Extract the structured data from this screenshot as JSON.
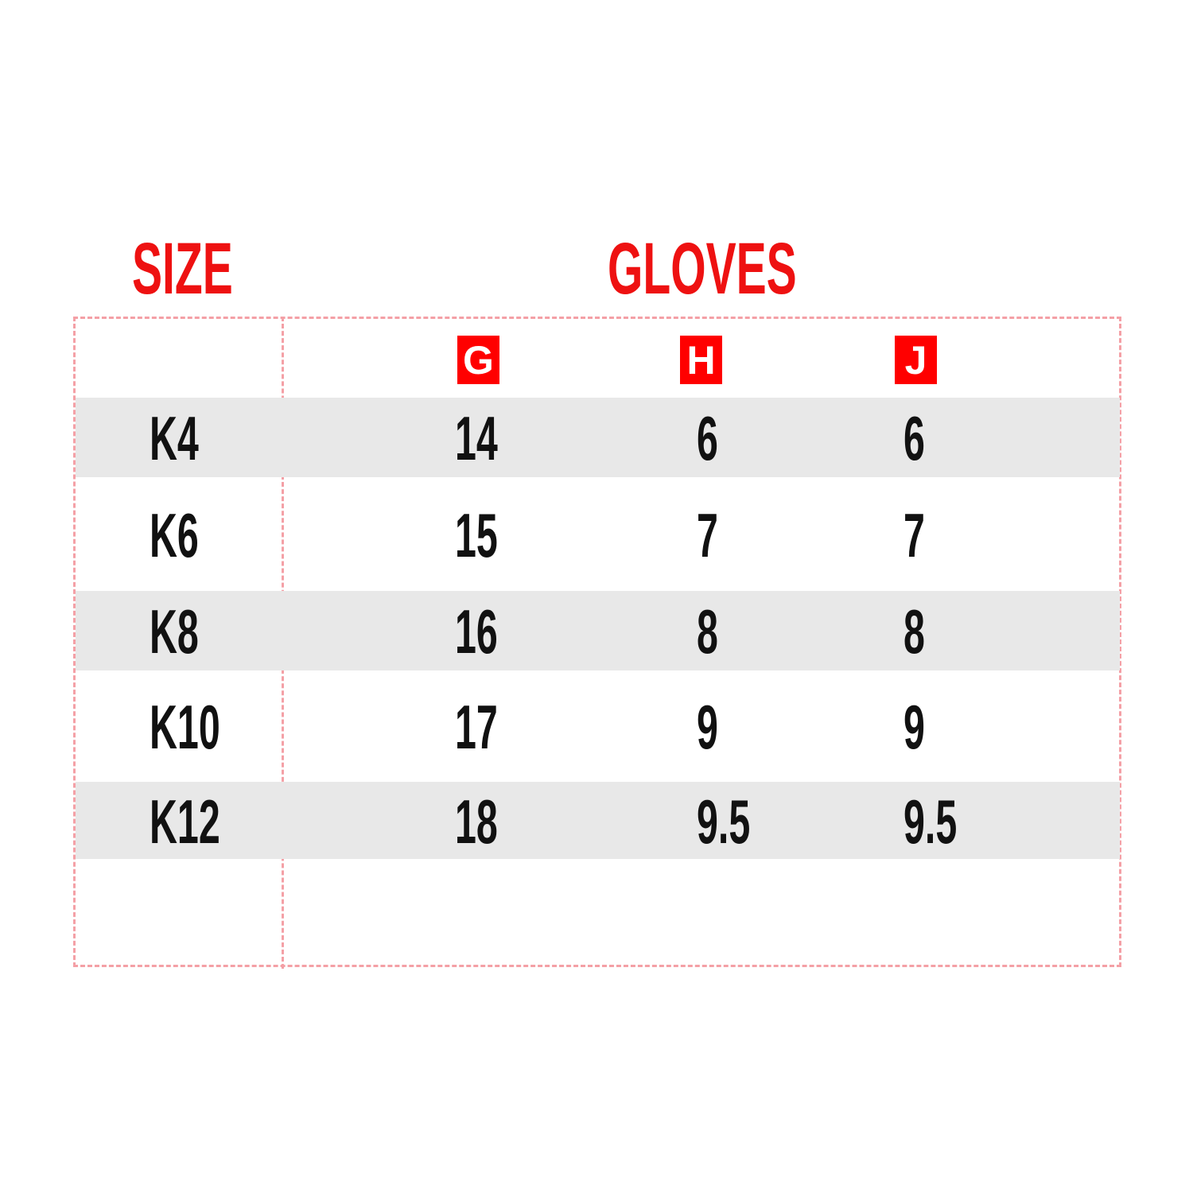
{
  "headers": {
    "size": "SIZE",
    "gloves": "GLOVES"
  },
  "columns": [
    "G",
    "H",
    "J"
  ],
  "rows": [
    {
      "size": "K4",
      "values": [
        "14",
        "6",
        "6"
      ]
    },
    {
      "size": "K6",
      "values": [
        "15",
        "7",
        "7"
      ]
    },
    {
      "size": "K8",
      "values": [
        "16",
        "8",
        "8"
      ]
    },
    {
      "size": "K10",
      "values": [
        "17",
        "9",
        "9"
      ]
    },
    {
      "size": "K12",
      "values": [
        "18",
        "9.5",
        "9.5"
      ]
    }
  ],
  "colors": {
    "accent": "#ff0000",
    "border": "#f4a0a6",
    "stripe": "#e8e8e8"
  }
}
